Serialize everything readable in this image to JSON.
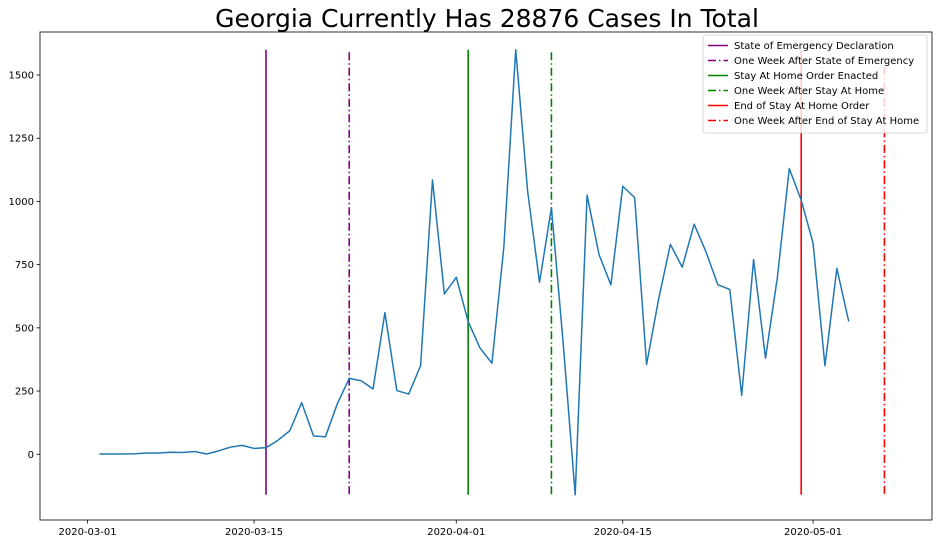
{
  "chart_data": {
    "type": "line",
    "title": "Georgia Currently Has 28876 Cases In Total",
    "xlabel": "",
    "ylabel": "",
    "x_start": "2020-03-02",
    "x_ticks": [
      "2020-03-01",
      "2020-03-15",
      "2020-04-01",
      "2020-04-15",
      "2020-05-01"
    ],
    "xlim": [
      "2020-02-26",
      "2020-05-11"
    ],
    "y_ticks": [
      0,
      250,
      500,
      750,
      1000,
      1250,
      1500
    ],
    "ylim": [
      -260,
      1670
    ],
    "grid": false,
    "legend_position": "top-right",
    "series": [
      {
        "color": "#1f77b4",
        "values": [
          1,
          1,
          1,
          2,
          5,
          5,
          8,
          7,
          11,
          1,
          13,
          28,
          35,
          23,
          26,
          55,
          93,
          204,
          72,
          69,
          200,
          300,
          291,
          258,
          560,
          252,
          238,
          350,
          1085,
          634,
          700,
          525,
          420,
          360,
          820,
          1600,
          1040,
          680,
          975,
          433,
          -160,
          1025,
          790,
          670,
          1060,
          1015,
          355,
          610,
          830,
          740,
          910,
          800,
          670,
          652,
          233,
          770,
          380,
          700,
          1130,
          1005,
          835,
          350,
          735,
          525
        ]
      }
    ],
    "vlines": [
      {
        "label": "State of Emergency Declaration",
        "date": "2020-03-16",
        "color": "#800080",
        "style": "solid",
        "ymin": -160,
        "ymax": 1600
      },
      {
        "label": "One Week After State of Emergency",
        "date": "2020-03-23",
        "color": "#800080",
        "style": "dashdot",
        "ymin": -160,
        "ymax": 1590
      },
      {
        "label": "Stay At Home Order Enacted",
        "date": "2020-04-02",
        "color": "#008000",
        "style": "solid",
        "ymin": -160,
        "ymax": 1600
      },
      {
        "label": "One Week After Stay At Home",
        "date": "2020-04-09",
        "color": "#008000",
        "style": "dashdot",
        "ymin": -160,
        "ymax": 1590
      },
      {
        "label": "End of Stay At Home Order",
        "date": "2020-04-30",
        "color": "#ff0000",
        "style": "solid",
        "ymin": -160,
        "ymax": 1600
      },
      {
        "label": "One Week After End of Stay At Home",
        "date": "2020-05-07",
        "color": "#ff0000",
        "style": "dashdot",
        "ymin": -160,
        "ymax": 1530
      }
    ]
  }
}
